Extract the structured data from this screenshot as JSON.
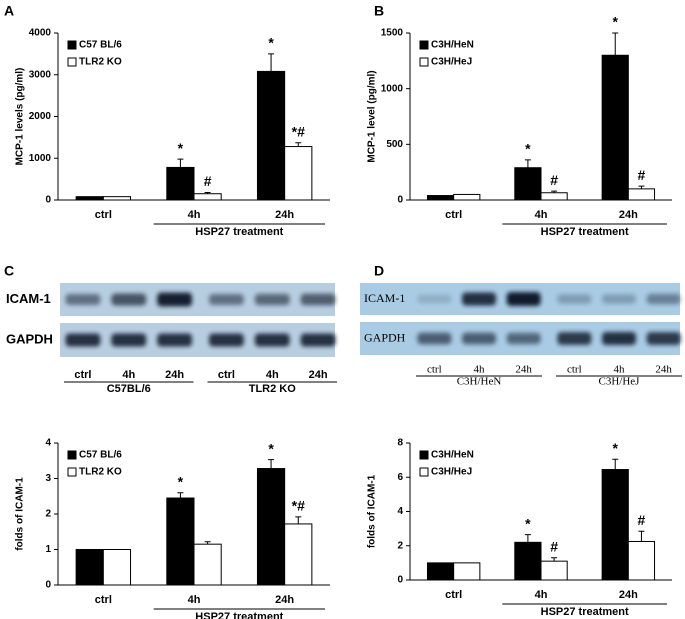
{
  "panel_labels": [
    "A",
    "B",
    "C",
    "D"
  ],
  "chart_data": [
    {
      "type": "bar",
      "y_label": "MCP-1 levels (pg/ml)",
      "categories": [
        "ctrl",
        "4h",
        "24h"
      ],
      "group_label": "HSP27 treatment",
      "ylim": [
        0,
        4000
      ],
      "yticks": [
        0,
        1000,
        2000,
        3000,
        4000
      ],
      "legend": "top-left",
      "series": [
        {
          "name": "C57 BL/6",
          "color": "#000000",
          "values": [
            80,
            780,
            3080
          ],
          "errors": [
            0,
            200,
            420
          ],
          "annotations": [
            null,
            "*",
            "*"
          ]
        },
        {
          "name": "TLR2 KO",
          "color": "#ffffff",
          "values": [
            80,
            150,
            1280
          ],
          "errors": [
            0,
            30,
            90
          ],
          "annotations": [
            null,
            "#",
            "*#"
          ]
        }
      ]
    },
    {
      "type": "bar",
      "y_label": "MCP-1 level (pg/ml)",
      "categories": [
        "ctrl",
        "4h",
        "24h"
      ],
      "group_label": "HSP27 treatment",
      "ylim": [
        0,
        1500
      ],
      "yticks": [
        0,
        500,
        1000,
        1500
      ],
      "legend": "top-left",
      "series": [
        {
          "name": "C3H/HeN",
          "color": "#000000",
          "values": [
            40,
            290,
            1300
          ],
          "errors": [
            0,
            70,
            200
          ],
          "annotations": [
            null,
            "*",
            "*"
          ]
        },
        {
          "name": "C3H/HeJ",
          "color": "#ffffff",
          "values": [
            50,
            65,
            100
          ],
          "errors": [
            0,
            15,
            25
          ],
          "annotations": [
            null,
            "#",
            "#"
          ]
        }
      ]
    },
    {
      "type": "bar",
      "y_label": "folds of ICAM-1",
      "categories": [
        "ctrl",
        "4h",
        "24h"
      ],
      "group_label": "HSP27 treatment",
      "ylim": [
        0,
        4
      ],
      "yticks": [
        0,
        1,
        2,
        3,
        4
      ],
      "legend": "top-left",
      "series": [
        {
          "name": "C57 BL/6",
          "color": "#000000",
          "values": [
            1,
            2.45,
            3.28
          ],
          "errors": [
            0,
            0.15,
            0.25
          ],
          "annotations": [
            null,
            "*",
            "*"
          ]
        },
        {
          "name": "TLR2 KO",
          "color": "#ffffff",
          "values": [
            1,
            1.15,
            1.72
          ],
          "errors": [
            0,
            0.07,
            0.2
          ],
          "annotations": [
            null,
            null,
            "*#"
          ]
        }
      ]
    },
    {
      "type": "bar",
      "y_label": "folds of ICAM-1",
      "categories": [
        "ctrl",
        "4h",
        "24h"
      ],
      "group_label": "HSP27 treatment",
      "ylim": [
        0,
        8
      ],
      "yticks": [
        0,
        2,
        4,
        6,
        8
      ],
      "legend": "top-left",
      "series": [
        {
          "name": "C3H/HeN",
          "color": "#000000",
          "values": [
            1,
            2.2,
            6.45
          ],
          "errors": [
            0,
            0.45,
            0.6
          ],
          "annotations": [
            null,
            "*",
            "*"
          ]
        },
        {
          "name": "C3H/HeJ",
          "color": "#ffffff",
          "values": [
            1,
            1.1,
            2.25
          ],
          "errors": [
            0,
            0.2,
            0.6
          ],
          "annotations": [
            null,
            "#",
            "#"
          ]
        }
      ]
    }
  ],
  "blots": [
    {
      "rows": [
        "ICAM-1",
        "GAPDH"
      ],
      "lanes": [
        "ctrl",
        "4h",
        "24h",
        "ctrl",
        "4h",
        "24h"
      ],
      "groups": [
        "C57BL/6",
        "TLR2 KO"
      ]
    },
    {
      "rows": [
        "ICAM-1",
        "GAPDH"
      ],
      "lanes": [
        "ctrl",
        "4h",
        "24h",
        "ctrl",
        "4h",
        "24h"
      ],
      "groups": [
        "C3H/HeN",
        "C3H/HeJ"
      ]
    }
  ]
}
